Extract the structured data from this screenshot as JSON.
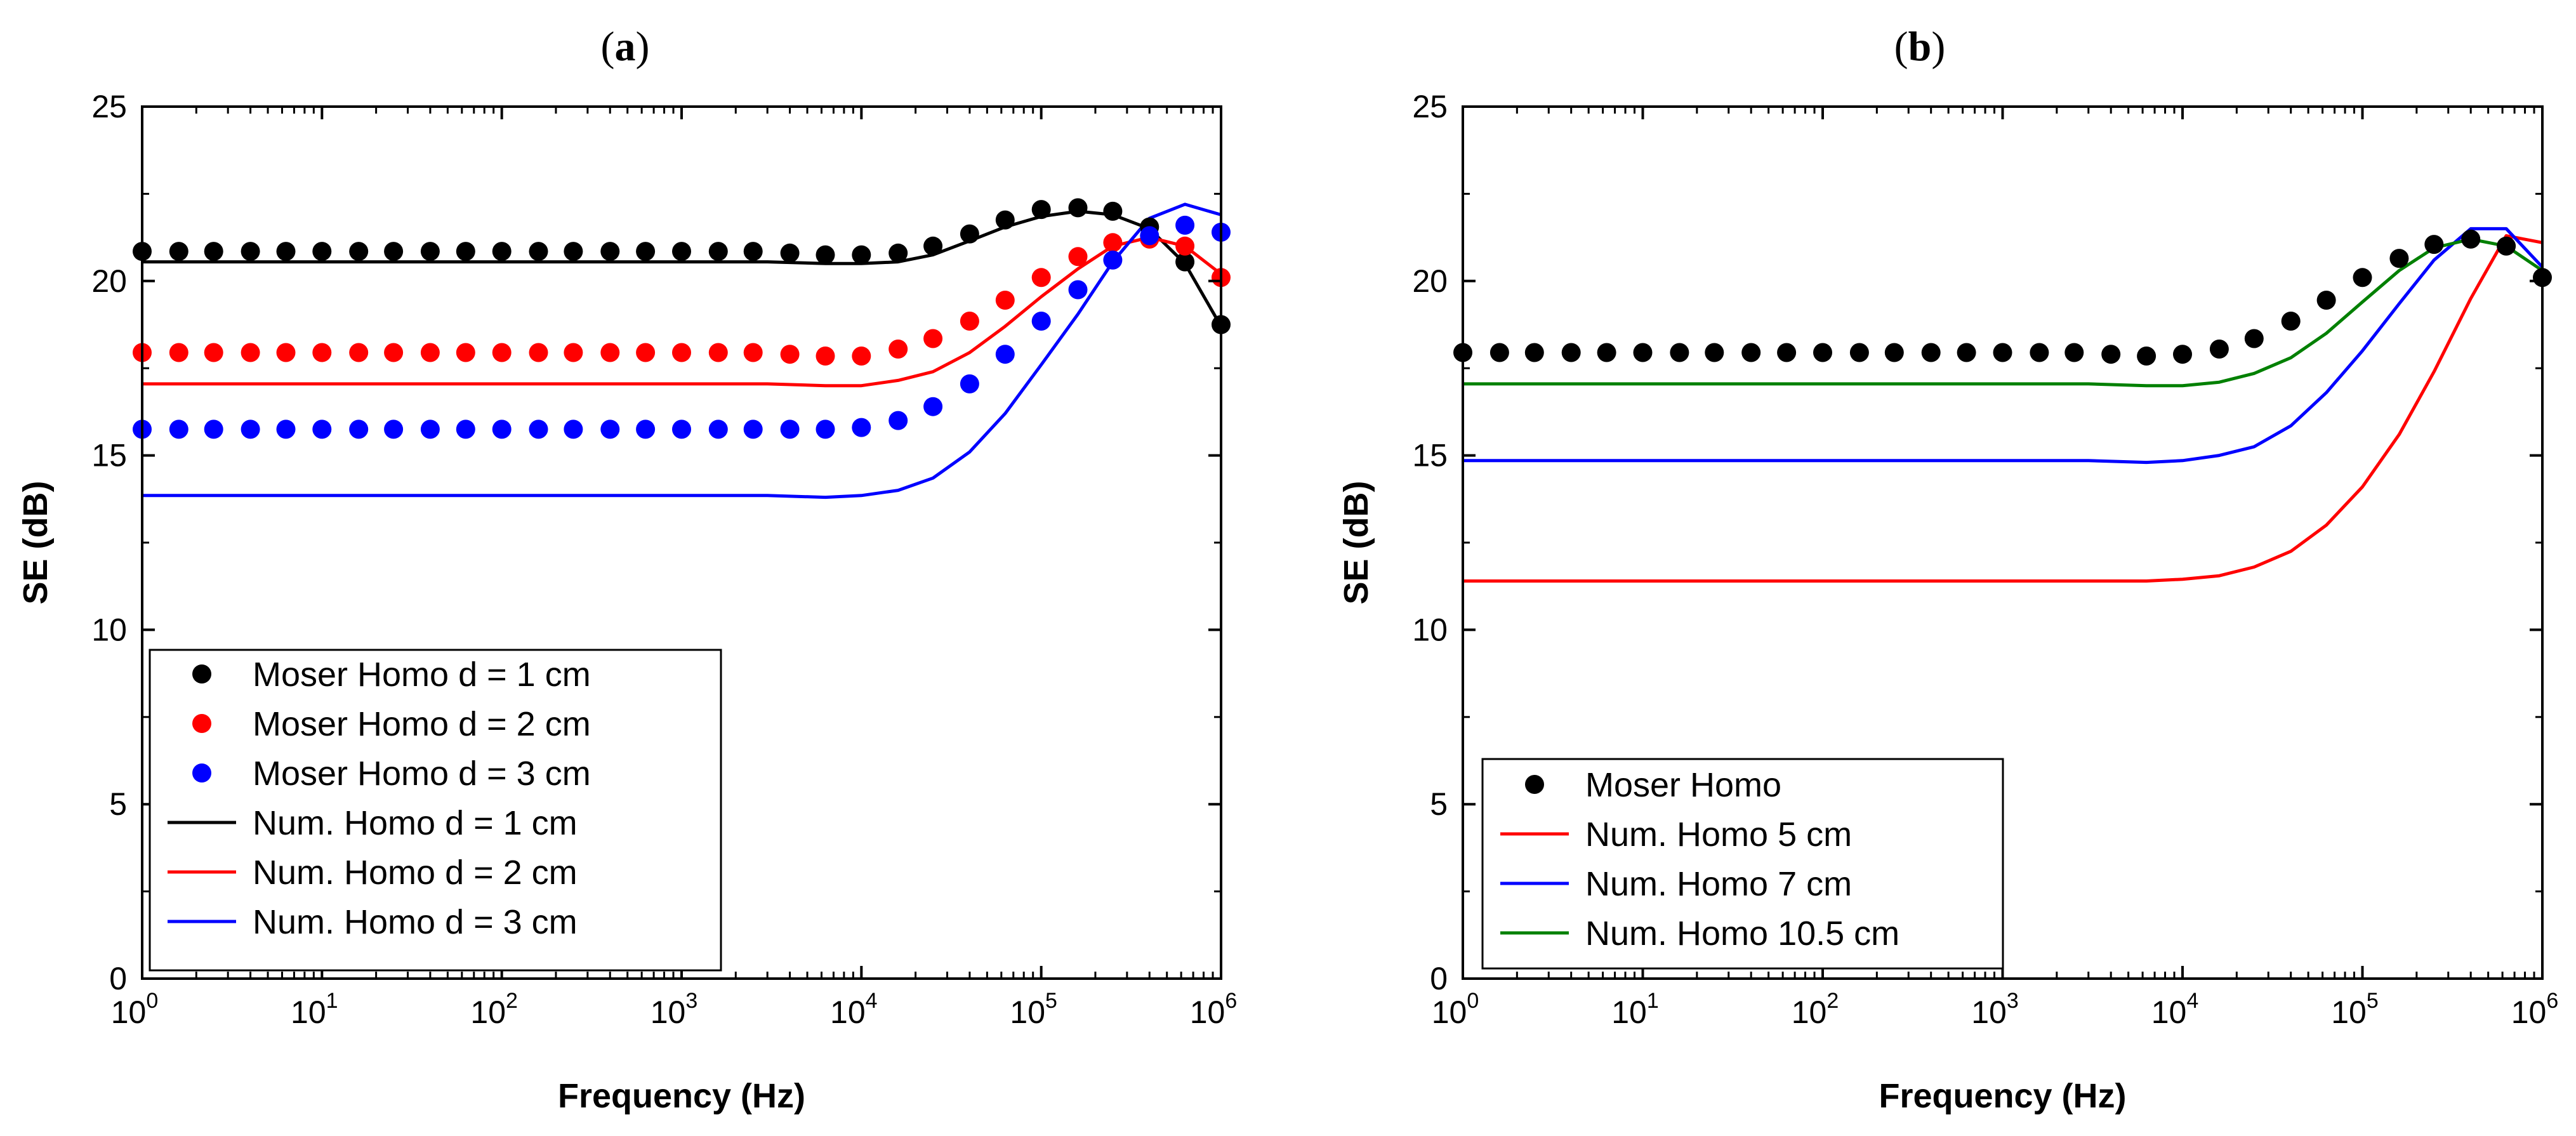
{
  "chart_data": [
    {
      "panel": "(a)",
      "type": "line",
      "xlabel": "Frequency (Hz)",
      "ylabel": "SE (dB)",
      "xscale": "log",
      "xlim": [
        1,
        1000000
      ],
      "ylim": [
        0,
        25
      ],
      "yticks": [
        0,
        5,
        10,
        15,
        20,
        25
      ],
      "xticks": [
        {
          "base": "10",
          "exp": "0"
        },
        {
          "base": "10",
          "exp": "1"
        },
        {
          "base": "10",
          "exp": "2"
        },
        {
          "base": "10",
          "exp": "3"
        },
        {
          "base": "10",
          "exp": "4"
        },
        {
          "base": "10",
          "exp": "5"
        },
        {
          "base": "10",
          "exp": "6"
        }
      ],
      "grid": false,
      "legend_position": "bottom-left",
      "series": [
        {
          "name": "Moser Homo d = 1 cm",
          "kind": "scatter",
          "color": "#000000",
          "x": [
            1,
            1.6,
            2.5,
            4,
            6.3,
            10,
            16,
            25,
            40,
            63,
            100,
            160,
            250,
            400,
            630,
            1000,
            1600,
            2500,
            4000,
            6300,
            10000,
            16000,
            25000,
            40000,
            63000,
            100000,
            160000,
            250000,
            400000,
            630000,
            1000000
          ],
          "y": [
            20.85,
            20.85,
            20.85,
            20.85,
            20.85,
            20.85,
            20.85,
            20.85,
            20.85,
            20.85,
            20.85,
            20.85,
            20.85,
            20.85,
            20.85,
            20.85,
            20.85,
            20.85,
            20.8,
            20.75,
            20.75,
            20.8,
            21.0,
            21.35,
            21.75,
            22.05,
            22.1,
            22.0,
            21.55,
            20.55,
            18.75
          ]
        },
        {
          "name": "Moser Homo d = 2 cm",
          "kind": "scatter",
          "color": "#ff0000",
          "x": [
            1,
            1.6,
            2.5,
            4,
            6.3,
            10,
            16,
            25,
            40,
            63,
            100,
            160,
            250,
            400,
            630,
            1000,
            1600,
            2500,
            4000,
            6300,
            10000,
            16000,
            25000,
            40000,
            63000,
            100000,
            160000,
            250000,
            400000,
            630000,
            1000000
          ],
          "y": [
            17.95,
            17.95,
            17.95,
            17.95,
            17.95,
            17.95,
            17.95,
            17.95,
            17.95,
            17.95,
            17.95,
            17.95,
            17.95,
            17.95,
            17.95,
            17.95,
            17.95,
            17.95,
            17.9,
            17.85,
            17.85,
            18.05,
            18.35,
            18.85,
            19.45,
            20.1,
            20.7,
            21.1,
            21.2,
            21.0,
            20.1
          ]
        },
        {
          "name": "Moser Homo d = 3 cm",
          "kind": "scatter",
          "color": "#0000ff",
          "x": [
            1,
            1.6,
            2.5,
            4,
            6.3,
            10,
            16,
            25,
            40,
            63,
            100,
            160,
            250,
            400,
            630,
            1000,
            1600,
            2500,
            4000,
            6300,
            10000,
            16000,
            25000,
            40000,
            63000,
            100000,
            160000,
            250000,
            400000,
            630000,
            1000000
          ],
          "y": [
            15.75,
            15.75,
            15.75,
            15.75,
            15.75,
            15.75,
            15.75,
            15.75,
            15.75,
            15.75,
            15.75,
            15.75,
            15.75,
            15.75,
            15.75,
            15.75,
            15.75,
            15.75,
            15.75,
            15.75,
            15.8,
            16.0,
            16.4,
            17.05,
            17.9,
            18.85,
            19.75,
            20.6,
            21.3,
            21.6,
            21.4
          ]
        },
        {
          "name": "Num. Homo d = 1 cm",
          "kind": "line",
          "color": "#000000",
          "x": [
            1,
            1000,
            3000,
            6300,
            10000,
            16000,
            25000,
            40000,
            63000,
            100000,
            160000,
            250000,
            400000,
            630000,
            1000000
          ],
          "y": [
            20.55,
            20.55,
            20.55,
            20.5,
            20.5,
            20.55,
            20.75,
            21.15,
            21.55,
            21.85,
            22.0,
            21.9,
            21.5,
            20.5,
            18.7
          ]
        },
        {
          "name": "Num. Homo d = 2 cm",
          "kind": "line",
          "color": "#ff0000",
          "x": [
            1,
            1000,
            3000,
            6300,
            10000,
            16000,
            25000,
            40000,
            63000,
            100000,
            160000,
            250000,
            400000,
            630000,
            1000000
          ],
          "y": [
            17.05,
            17.05,
            17.05,
            17.0,
            17.0,
            17.15,
            17.4,
            17.95,
            18.7,
            19.55,
            20.35,
            21.0,
            21.25,
            21.0,
            20.2
          ]
        },
        {
          "name": "Num. Homo d = 3 cm",
          "kind": "line",
          "color": "#0000ff",
          "x": [
            1,
            1000,
            3000,
            6300,
            10000,
            16000,
            25000,
            40000,
            63000,
            100000,
            160000,
            250000,
            400000,
            630000,
            1000000
          ],
          "y": [
            13.85,
            13.85,
            13.85,
            13.8,
            13.85,
            14.0,
            14.35,
            15.1,
            16.2,
            17.6,
            19.05,
            20.55,
            21.8,
            22.2,
            21.9
          ]
        }
      ]
    },
    {
      "panel": "(b)",
      "type": "line",
      "xlabel": "Frequency (Hz)",
      "ylabel": "SE (dB)",
      "xscale": "log",
      "xlim": [
        1,
        1000000
      ],
      "ylim": [
        0,
        25
      ],
      "yticks": [
        0,
        5,
        10,
        15,
        20,
        25
      ],
      "xticks": [
        {
          "base": "10",
          "exp": "0"
        },
        {
          "base": "10",
          "exp": "1"
        },
        {
          "base": "10",
          "exp": "2"
        },
        {
          "base": "10",
          "exp": "3"
        },
        {
          "base": "10",
          "exp": "4"
        },
        {
          "base": "10",
          "exp": "5"
        },
        {
          "base": "10",
          "exp": "6"
        }
      ],
      "grid": false,
      "legend_position": "bottom-left",
      "series": [
        {
          "name": "Moser Homo",
          "kind": "scatter",
          "color": "#000000",
          "x": [
            1,
            1.6,
            2.5,
            4,
            6.3,
            10,
            16,
            25,
            40,
            63,
            100,
            160,
            250,
            400,
            630,
            1000,
            1600,
            2500,
            4000,
            6300,
            10000,
            16000,
            25000,
            40000,
            63000,
            100000,
            160000,
            250000,
            400000,
            630000,
            1000000
          ],
          "y": [
            17.95,
            17.95,
            17.95,
            17.95,
            17.95,
            17.95,
            17.95,
            17.95,
            17.95,
            17.95,
            17.95,
            17.95,
            17.95,
            17.95,
            17.95,
            17.95,
            17.95,
            17.95,
            17.9,
            17.85,
            17.9,
            18.05,
            18.35,
            18.85,
            19.45,
            20.1,
            20.65,
            21.05,
            21.2,
            21.0,
            20.1
          ]
        },
        {
          "name": "Num. Homo 5 cm",
          "kind": "line",
          "color": "#ff0000",
          "x": [
            1,
            1000,
            3000,
            6300,
            10000,
            16000,
            25000,
            40000,
            63000,
            100000,
            160000,
            250000,
            400000,
            630000,
            1000000
          ],
          "y": [
            11.4,
            11.4,
            11.4,
            11.4,
            11.45,
            11.55,
            11.8,
            12.25,
            13.0,
            14.1,
            15.6,
            17.4,
            19.5,
            21.3,
            21.1
          ]
        },
        {
          "name": "Num. Homo 7 cm",
          "kind": "line",
          "color": "#0000ff",
          "x": [
            1,
            1000,
            3000,
            6300,
            10000,
            16000,
            25000,
            40000,
            63000,
            100000,
            160000,
            250000,
            400000,
            630000,
            1000000
          ],
          "y": [
            14.85,
            14.85,
            14.85,
            14.8,
            14.85,
            15.0,
            15.25,
            15.85,
            16.8,
            18.0,
            19.35,
            20.6,
            21.5,
            21.5,
            20.4
          ]
        },
        {
          "name": "Num. Homo 10.5 cm",
          "kind": "line",
          "color": "#008000",
          "x": [
            1,
            1000,
            3000,
            6300,
            10000,
            16000,
            25000,
            40000,
            63000,
            100000,
            160000,
            250000,
            400000,
            630000,
            1000000
          ],
          "y": [
            17.05,
            17.05,
            17.05,
            17.0,
            17.0,
            17.1,
            17.35,
            17.8,
            18.5,
            19.4,
            20.3,
            20.95,
            21.2,
            21.0,
            20.3
          ]
        }
      ]
    }
  ]
}
